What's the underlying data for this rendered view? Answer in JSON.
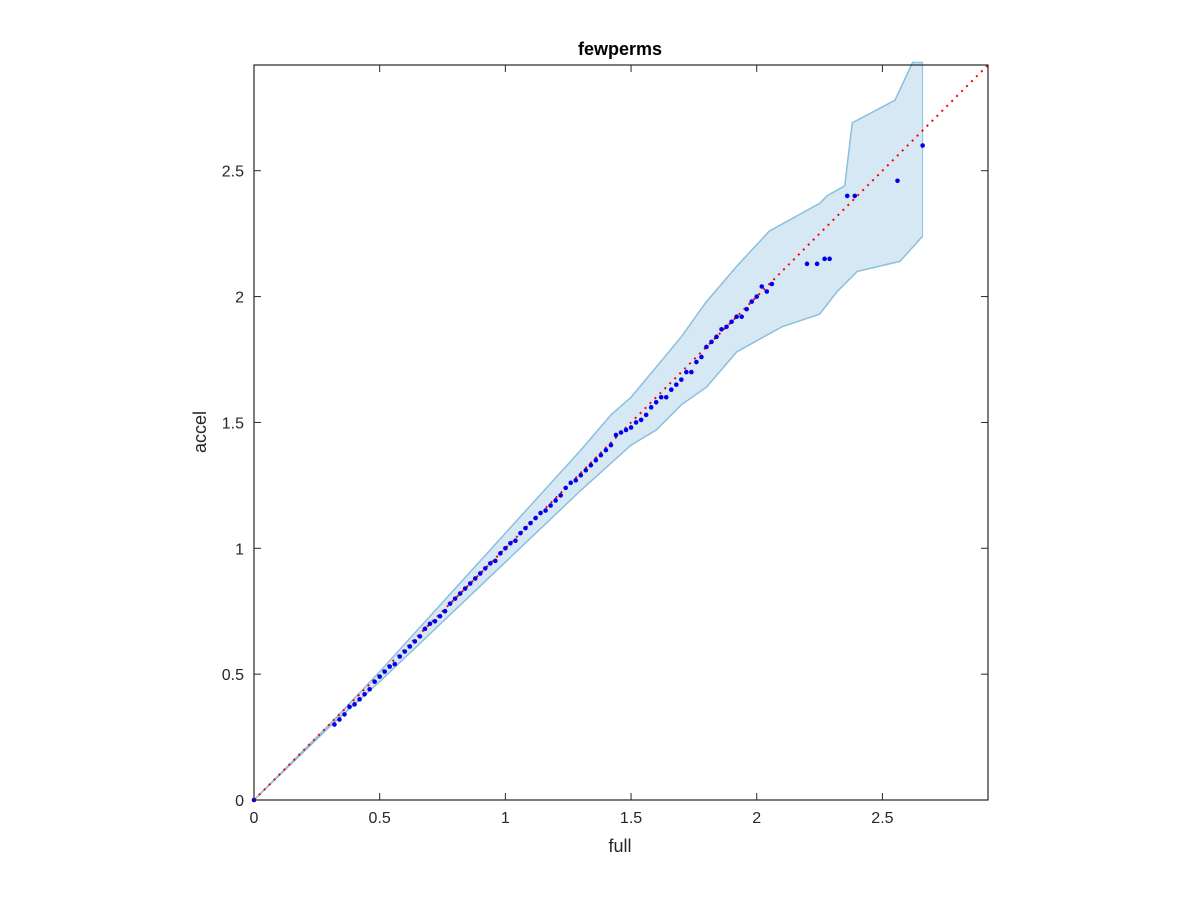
{
  "chart_data": {
    "type": "scatter",
    "title": "fewperms",
    "xlabel": "full",
    "ylabel": "accel",
    "xlim": [
      0,
      2.92
    ],
    "ylim": [
      0,
      2.92
    ],
    "xticks": [
      0,
      0.5,
      1,
      1.5,
      2,
      2.5
    ],
    "yticks": [
      0,
      0.5,
      1,
      1.5,
      2,
      2.5
    ],
    "xtick_labels": [
      "0",
      "0.5",
      "1",
      "1.5",
      "2",
      "2.5"
    ],
    "ytick_labels": [
      "0",
      "0.5",
      "1",
      "1.5",
      "2",
      "2.5"
    ],
    "grid": false,
    "reference_line": {
      "x": [
        0,
        2.92
      ],
      "y": [
        0,
        2.92
      ],
      "style": "dotted",
      "color": "#ff0000"
    },
    "band": {
      "color_fill": "#d6e8f4",
      "color_edge": "#8abfdd",
      "upper": [
        [
          0,
          0
        ],
        [
          0.32,
          0.32
        ],
        [
          0.5,
          0.51
        ],
        [
          0.7,
          0.73
        ],
        [
          0.9,
          0.95
        ],
        [
          1.1,
          1.17
        ],
        [
          1.3,
          1.39
        ],
        [
          1.42,
          1.53
        ],
        [
          1.5,
          1.6
        ],
        [
          1.6,
          1.72
        ],
        [
          1.7,
          1.84
        ],
        [
          1.8,
          1.98
        ],
        [
          1.92,
          2.12
        ],
        [
          2.05,
          2.26
        ],
        [
          2.25,
          2.37
        ],
        [
          2.28,
          2.4
        ],
        [
          2.35,
          2.44
        ],
        [
          2.38,
          2.69
        ],
        [
          2.55,
          2.78
        ],
        [
          2.62,
          2.93
        ],
        [
          2.66,
          2.93
        ]
      ],
      "lower": [
        [
          0,
          0
        ],
        [
          0.31,
          0.3
        ],
        [
          0.5,
          0.47
        ],
        [
          0.7,
          0.66
        ],
        [
          0.9,
          0.85
        ],
        [
          1.1,
          1.04
        ],
        [
          1.3,
          1.23
        ],
        [
          1.5,
          1.41
        ],
        [
          1.6,
          1.47
        ],
        [
          1.7,
          1.57
        ],
        [
          1.8,
          1.64
        ],
        [
          1.92,
          1.78
        ],
        [
          2.1,
          1.88
        ],
        [
          2.25,
          1.93
        ],
        [
          2.32,
          2.02
        ],
        [
          2.4,
          2.1
        ],
        [
          2.57,
          2.14
        ],
        [
          2.66,
          2.24
        ]
      ]
    },
    "series": [
      {
        "color": "#0000ee",
        "points": [
          [
            0,
            0
          ],
          [
            0.32,
            0.3
          ],
          [
            0.34,
            0.32
          ],
          [
            0.36,
            0.34
          ],
          [
            0.38,
            0.37
          ],
          [
            0.4,
            0.38
          ],
          [
            0.42,
            0.4
          ],
          [
            0.44,
            0.42
          ],
          [
            0.46,
            0.44
          ],
          [
            0.48,
            0.47
          ],
          [
            0.5,
            0.49
          ],
          [
            0.52,
            0.51
          ],
          [
            0.54,
            0.53
          ],
          [
            0.56,
            0.54
          ],
          [
            0.58,
            0.57
          ],
          [
            0.6,
            0.59
          ],
          [
            0.62,
            0.61
          ],
          [
            0.64,
            0.63
          ],
          [
            0.66,
            0.65
          ],
          [
            0.68,
            0.68
          ],
          [
            0.7,
            0.7
          ],
          [
            0.72,
            0.71
          ],
          [
            0.74,
            0.73
          ],
          [
            0.76,
            0.75
          ],
          [
            0.78,
            0.78
          ],
          [
            0.8,
            0.8
          ],
          [
            0.82,
            0.82
          ],
          [
            0.84,
            0.84
          ],
          [
            0.86,
            0.86
          ],
          [
            0.88,
            0.88
          ],
          [
            0.9,
            0.9
          ],
          [
            0.92,
            0.92
          ],
          [
            0.94,
            0.94
          ],
          [
            0.96,
            0.95
          ],
          [
            0.98,
            0.98
          ],
          [
            1.0,
            1.0
          ],
          [
            1.02,
            1.02
          ],
          [
            1.04,
            1.03
          ],
          [
            1.06,
            1.06
          ],
          [
            1.08,
            1.08
          ],
          [
            1.1,
            1.1
          ],
          [
            1.12,
            1.12
          ],
          [
            1.14,
            1.14
          ],
          [
            1.16,
            1.15
          ],
          [
            1.18,
            1.17
          ],
          [
            1.2,
            1.19
          ],
          [
            1.22,
            1.21
          ],
          [
            1.24,
            1.24
          ],
          [
            1.26,
            1.26
          ],
          [
            1.28,
            1.27
          ],
          [
            1.3,
            1.29
          ],
          [
            1.32,
            1.31
          ],
          [
            1.34,
            1.33
          ],
          [
            1.36,
            1.35
          ],
          [
            1.38,
            1.37
          ],
          [
            1.4,
            1.39
          ],
          [
            1.42,
            1.41
          ],
          [
            1.44,
            1.45
          ],
          [
            1.46,
            1.46
          ],
          [
            1.48,
            1.47
          ],
          [
            1.5,
            1.48
          ],
          [
            1.52,
            1.5
          ],
          [
            1.54,
            1.51
          ],
          [
            1.56,
            1.53
          ],
          [
            1.58,
            1.56
          ],
          [
            1.6,
            1.58
          ],
          [
            1.62,
            1.6
          ],
          [
            1.64,
            1.6
          ],
          [
            1.66,
            1.63
          ],
          [
            1.68,
            1.65
          ],
          [
            1.7,
            1.67
          ],
          [
            1.72,
            1.7
          ],
          [
            1.74,
            1.7
          ],
          [
            1.76,
            1.74
          ],
          [
            1.78,
            1.76
          ],
          [
            1.8,
            1.8
          ],
          [
            1.82,
            1.82
          ],
          [
            1.84,
            1.84
          ],
          [
            1.86,
            1.87
          ],
          [
            1.88,
            1.88
          ],
          [
            1.9,
            1.9
          ],
          [
            1.92,
            1.92
          ],
          [
            1.94,
            1.92
          ],
          [
            1.96,
            1.95
          ],
          [
            1.98,
            1.98
          ],
          [
            2.0,
            2.0
          ],
          [
            2.02,
            2.04
          ],
          [
            2.04,
            2.02
          ],
          [
            2.06,
            2.05
          ],
          [
            2.2,
            2.13
          ],
          [
            2.24,
            2.13
          ],
          [
            2.27,
            2.15
          ],
          [
            2.29,
            2.15
          ],
          [
            2.36,
            2.4
          ],
          [
            2.39,
            2.4
          ],
          [
            2.56,
            2.46
          ],
          [
            2.66,
            2.6
          ]
        ]
      }
    ]
  }
}
